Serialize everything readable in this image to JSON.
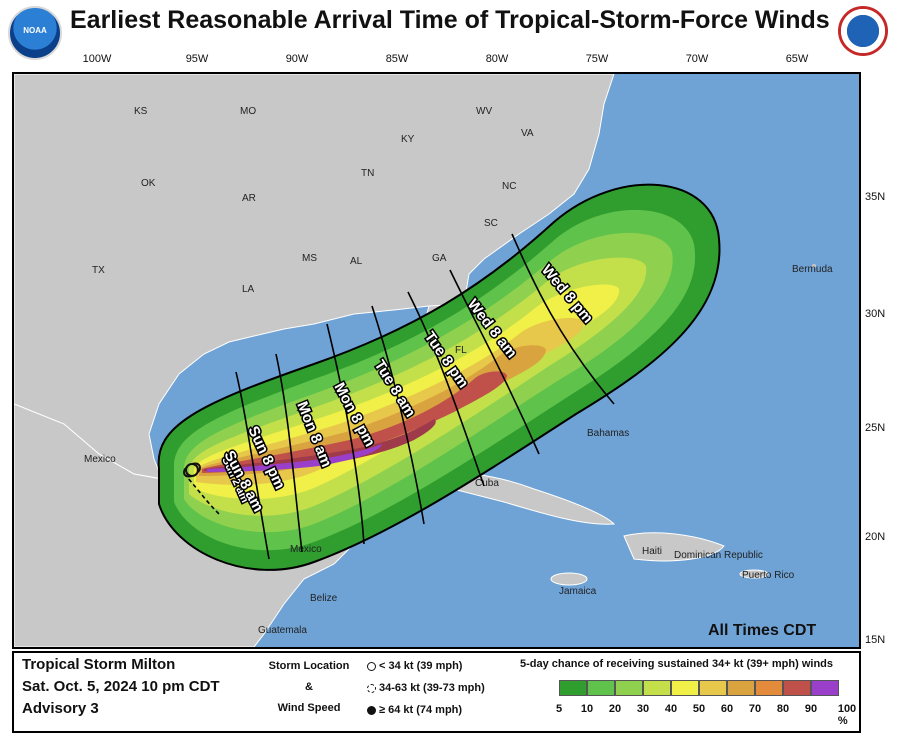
{
  "title": "Earliest Reasonable Arrival Time of Tropical-Storm-Force Winds",
  "logos": {
    "left": "NOAA",
    "right": "NATIONAL WEATHER SERVICE"
  },
  "longitude_labels": [
    "100W",
    "95W",
    "90W",
    "85W",
    "80W",
    "75W",
    "70W",
    "65W"
  ],
  "latitude_labels": [
    "35N",
    "30N",
    "25N",
    "20N",
    "15N"
  ],
  "map_labels": {
    "states": [
      "KS",
      "MO",
      "WV",
      "VA",
      "KY",
      "OK",
      "AR",
      "TN",
      "NC",
      "SC",
      "GA",
      "MS",
      "AL",
      "TX",
      "LA",
      "FL"
    ],
    "places": [
      "Bermuda",
      "Bahamas",
      "Mexico",
      "Cuba",
      "Haiti",
      "Dominican Republic",
      "Puerto Rico",
      "Jamaica",
      "Belize",
      "Guatemala",
      "Mexico"
    ]
  },
  "arrival_times": [
    "Sun 2 am",
    "Sun 8 am",
    "Sun 8 pm",
    "Mon 8 am",
    "Mon 8 pm",
    "Tue 8 am",
    "Tue 8 pm",
    "Wed 8 am",
    "Wed 8 pm"
  ],
  "times_note": "All Times CDT",
  "storm": {
    "name": "Tropical Storm Milton",
    "datetime": "Sat. Oct. 5, 2024  10 pm CDT",
    "advisory": "Advisory 3"
  },
  "storm_legend": {
    "heading1": "Storm Location",
    "amp": "&",
    "heading2": "Wind Speed",
    "items": [
      "< 34 kt (39 mph)",
      "34-63 kt (39-73 mph)",
      "≥ 64 kt (74 mph)"
    ]
  },
  "probability_legend": {
    "title": "5-day chance of receiving sustained 34+ kt (39+ mph) winds",
    "labels": [
      "5",
      "10",
      "20",
      "30",
      "40",
      "50",
      "60",
      "70",
      "80",
      "90",
      "100 %"
    ],
    "colors": [
      "#2f9e2f",
      "#5fc24a",
      "#8fd14f",
      "#c3e04a",
      "#f0f048",
      "#e8c84a",
      "#d9a440",
      "#e38b3a",
      "#c0504a",
      "#9e3a4a",
      "#9a3fc9"
    ]
  },
  "colors": {
    "ocean": "#6fa3d6",
    "land": "#c8c8c8",
    "border": "#ffffff"
  }
}
